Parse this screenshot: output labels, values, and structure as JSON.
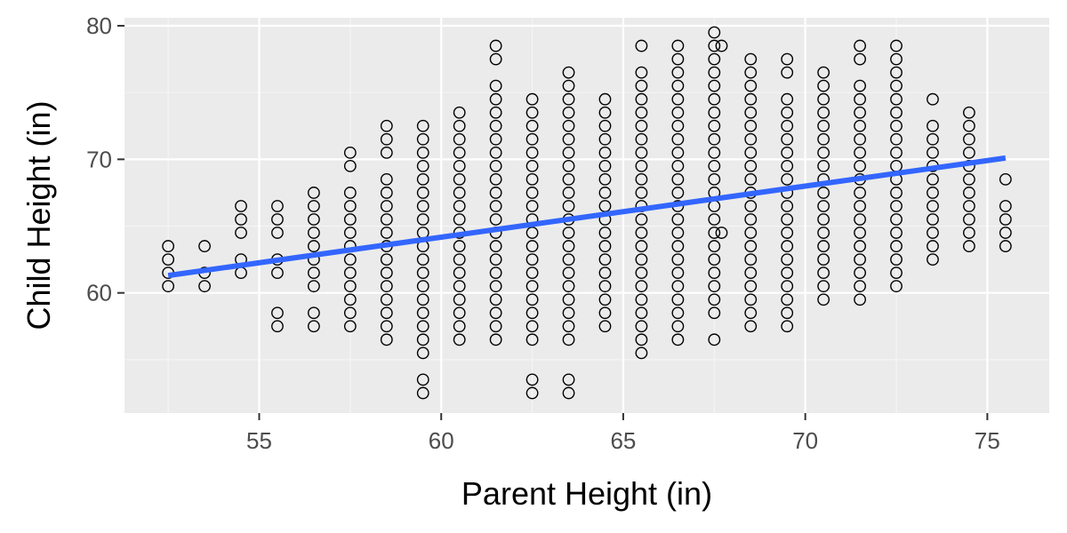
{
  "chart_data": {
    "type": "scatter",
    "title": "",
    "xlabel": "Parent Height (in)",
    "ylabel": "Child Height (in)",
    "xlim": [
      51.3,
      76.7
    ],
    "ylim": [
      51.0,
      80.6
    ],
    "xticks": [
      55,
      60,
      65,
      70,
      75
    ],
    "yticks": [
      60,
      70,
      80
    ],
    "grid": true,
    "legend": "none",
    "colors": {
      "panel_background": "#ebebeb",
      "grid_major": "#ffffff",
      "grid_minor": "#f5f5f5",
      "point_stroke": "#000000",
      "trend_line": "#3366ff"
    },
    "trend_line": {
      "x": [
        52.5,
        75.5
      ],
      "y": [
        61.3,
        70.1
      ]
    },
    "columns": [
      {
        "x": 52.5,
        "y": [
          60.5,
          61.5,
          62.5,
          63.5
        ]
      },
      {
        "x": 53.5,
        "y": [
          60.5,
          61.5,
          63.5
        ]
      },
      {
        "x": 54.5,
        "y": [
          61.5,
          62.5,
          64.5,
          65.5,
          66.5
        ]
      },
      {
        "x": 55.5,
        "y": [
          57.5,
          58.5,
          61.5,
          62.5,
          64.5,
          65.5,
          66.5
        ]
      },
      {
        "x": 56.5,
        "y": [
          57.5,
          58.5,
          60.5,
          61.5,
          62.5,
          63.5,
          64.5,
          65.5,
          66.5,
          67.5
        ]
      },
      {
        "x": 57.5,
        "y": [
          57.5,
          58.5,
          59.5,
          60.5,
          61.5,
          62.5,
          63.5,
          64.5,
          65.5,
          66.5,
          67.5,
          69.5,
          70.5
        ]
      },
      {
        "x": 58.5,
        "y": [
          56.5,
          57.5,
          58.5,
          59.5,
          60.5,
          61.5,
          62.5,
          63.5,
          64.5,
          65.5,
          66.5,
          67.5,
          68.5,
          70.5,
          71.5,
          72.5
        ]
      },
      {
        "x": 59.5,
        "y": [
          52.5,
          53.5,
          55.5,
          56.5,
          57.5,
          58.5,
          59.5,
          60.5,
          61.5,
          62.5,
          63.5,
          64.5,
          65.5,
          66.5,
          67.5,
          68.5,
          69.5,
          70.5,
          71.5,
          72.5
        ]
      },
      {
        "x": 60.5,
        "y": [
          56.5,
          57.5,
          58.5,
          59.5,
          60.5,
          61.5,
          62.5,
          63.5,
          64.5,
          65.5,
          66.5,
          67.5,
          68.5,
          69.5,
          70.5,
          71.5,
          72.5,
          73.5
        ]
      },
      {
        "x": 61.5,
        "y": [
          56.5,
          57.5,
          58.5,
          59.5,
          60.5,
          61.5,
          62.5,
          63.5,
          64.5,
          65.5,
          66.5,
          67.5,
          68.5,
          69.5,
          70.5,
          71.5,
          72.5,
          73.5,
          74.5,
          75.5,
          77.5,
          78.5
        ]
      },
      {
        "x": 62.5,
        "y": [
          52.5,
          53.5,
          56.5,
          57.5,
          58.5,
          59.5,
          60.5,
          61.5,
          62.5,
          63.5,
          64.5,
          65.5,
          66.5,
          67.5,
          68.5,
          69.5,
          70.5,
          71.5,
          72.5,
          73.5,
          74.5
        ]
      },
      {
        "x": 63.5,
        "y": [
          52.5,
          53.5,
          56.5,
          57.5,
          58.5,
          59.5,
          60.5,
          61.5,
          62.5,
          63.5,
          64.5,
          65.5,
          66.5,
          67.5,
          68.5,
          69.5,
          70.5,
          71.5,
          72.5,
          73.5,
          74.5,
          75.5,
          76.5
        ]
      },
      {
        "x": 64.5,
        "y": [
          57.5,
          58.5,
          59.5,
          60.5,
          61.5,
          62.5,
          63.5,
          64.5,
          65.5,
          66.5,
          67.5,
          68.5,
          69.5,
          70.5,
          71.5,
          72.5,
          73.5,
          74.5
        ]
      },
      {
        "x": 65.5,
        "y": [
          55.5,
          56.5,
          57.5,
          58.5,
          59.5,
          60.5,
          61.5,
          62.5,
          63.5,
          64.5,
          65.5,
          66.5,
          67.5,
          68.5,
          69.5,
          70.5,
          71.5,
          72.5,
          73.5,
          74.5,
          75.5,
          76.5,
          78.5
        ]
      },
      {
        "x": 66.5,
        "y": [
          56.5,
          57.5,
          58.5,
          59.5,
          60.5,
          61.5,
          62.5,
          63.5,
          64.5,
          65.5,
          66.5,
          67.5,
          68.5,
          69.5,
          70.5,
          71.5,
          72.5,
          73.5,
          74.5,
          75.5,
          76.5,
          77.5,
          78.5
        ]
      },
      {
        "x": 67.5,
        "y": [
          56.5,
          58.5,
          59.5,
          60.5,
          61.5,
          62.5,
          63.5,
          64.5,
          65.5,
          66.5,
          67.5,
          68.5,
          69.5,
          70.5,
          71.5,
          72.5,
          73.5,
          74.5,
          75.5,
          76.5,
          77.5,
          78.5,
          79.5
        ]
      },
      {
        "x": 67.7,
        "y": [
          64.5,
          78.5
        ]
      },
      {
        "x": 68.5,
        "y": [
          57.5,
          58.5,
          59.5,
          60.5,
          61.5,
          62.5,
          63.5,
          64.5,
          65.5,
          66.5,
          67.5,
          68.5,
          69.5,
          70.5,
          71.5,
          72.5,
          73.5,
          74.5,
          75.5,
          76.5,
          77.5
        ]
      },
      {
        "x": 69.5,
        "y": [
          57.5,
          58.5,
          59.5,
          60.5,
          61.5,
          62.5,
          63.5,
          64.5,
          65.5,
          66.5,
          67.5,
          68.5,
          69.5,
          70.5,
          71.5,
          72.5,
          73.5,
          74.5,
          76.5,
          77.5
        ]
      },
      {
        "x": 70.5,
        "y": [
          59.5,
          60.5,
          61.5,
          62.5,
          63.5,
          64.5,
          65.5,
          66.5,
          67.5,
          68.5,
          69.5,
          70.5,
          71.5,
          72.5,
          73.5,
          74.5,
          75.5,
          76.5
        ]
      },
      {
        "x": 71.5,
        "y": [
          59.5,
          60.5,
          61.5,
          62.5,
          63.5,
          64.5,
          65.5,
          66.5,
          67.5,
          68.5,
          69.5,
          70.5,
          71.5,
          72.5,
          73.5,
          74.5,
          75.5,
          77.5,
          78.5
        ]
      },
      {
        "x": 72.5,
        "y": [
          60.5,
          61.5,
          62.5,
          63.5,
          64.5,
          65.5,
          66.5,
          67.5,
          68.5,
          69.5,
          70.5,
          71.5,
          72.5,
          73.5,
          74.5,
          75.5,
          76.5,
          77.5,
          78.5
        ]
      },
      {
        "x": 73.5,
        "y": [
          62.5,
          63.5,
          64.5,
          65.5,
          66.5,
          67.5,
          68.5,
          69.5,
          70.5,
          71.5,
          72.5,
          74.5
        ]
      },
      {
        "x": 74.5,
        "y": [
          63.5,
          64.5,
          65.5,
          66.5,
          67.5,
          68.5,
          69.5,
          70.5,
          71.5,
          72.5,
          73.5
        ]
      },
      {
        "x": 75.5,
        "y": [
          63.5,
          64.5,
          65.5,
          66.5,
          68.5
        ]
      }
    ]
  }
}
